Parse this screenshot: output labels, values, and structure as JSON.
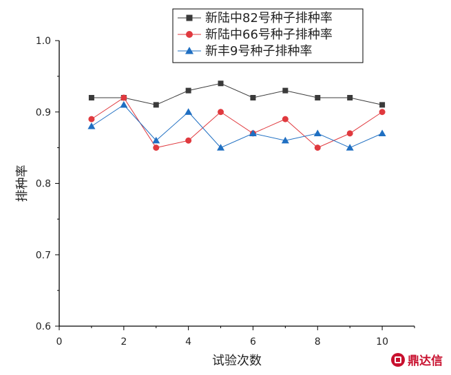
{
  "chart_data": {
    "type": "line",
    "xlabel": "试验次数",
    "ylabel": "排种率",
    "xlim": [
      0,
      11
    ],
    "ylim": [
      0.6,
      1.0
    ],
    "xticks": [
      0,
      2,
      4,
      6,
      8,
      10
    ],
    "yticks": [
      0.6,
      0.7,
      0.8,
      0.9,
      1.0
    ],
    "xtick_labels": [
      "0",
      "2",
      "4",
      "6",
      "8",
      "10"
    ],
    "ytick_labels": [
      "0.6",
      "0.7",
      "0.8",
      "0.9",
      "1.0"
    ],
    "grid": false,
    "legend_position": "top-center",
    "x": [
      1,
      2,
      3,
      4,
      5,
      6,
      7,
      8,
      9,
      10
    ],
    "series": [
      {
        "name": "新陆中82号种子排种率",
        "marker": "square",
        "line_color": "#3a3a3a",
        "marker_color": "#3a3a3a",
        "values": [
          0.92,
          0.92,
          0.91,
          0.93,
          0.94,
          0.92,
          0.93,
          0.92,
          0.92,
          0.91
        ]
      },
      {
        "name": "新陆中66号种子排种率",
        "marker": "circle",
        "line_color": "#e0393e",
        "marker_color": "#e0393e",
        "values": [
          0.89,
          0.92,
          0.85,
          0.86,
          0.9,
          0.87,
          0.89,
          0.85,
          0.87,
          0.9
        ]
      },
      {
        "name": "新丰9号种子排种率",
        "marker": "triangle",
        "line_color": "#1f6fc2",
        "marker_color": "#1f6fc2",
        "values": [
          0.88,
          0.91,
          0.86,
          0.9,
          0.85,
          0.87,
          0.86,
          0.87,
          0.85,
          0.87
        ]
      }
    ]
  },
  "watermark": {
    "text": "鼎达信",
    "color": "#c8102e",
    "icon": "seal-icon"
  }
}
